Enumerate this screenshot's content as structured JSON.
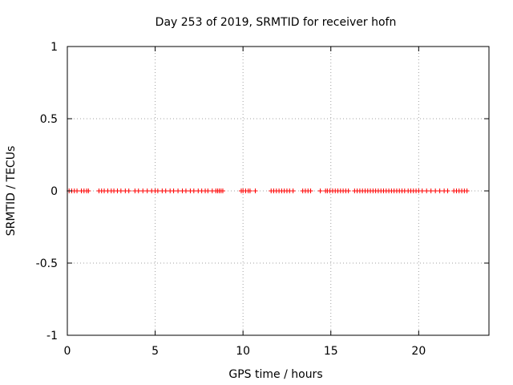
{
  "chart_data": {
    "type": "scatter",
    "title": "Day 253 of 2019, SRMTID for receiver hofn",
    "xlabel": "GPS time / hours",
    "ylabel": "SRMTID / TECUs",
    "xlim": [
      0,
      24
    ],
    "ylim": [
      -1,
      1
    ],
    "x_ticks": [
      0,
      5,
      10,
      15,
      20
    ],
    "x_tick_labels": [
      "0",
      "5",
      "10",
      "15",
      "20"
    ],
    "y_ticks": [
      -1,
      -0.5,
      0,
      0.5,
      1
    ],
    "y_tick_labels": [
      "-1",
      "-0.5",
      "0",
      "0.5",
      "1"
    ],
    "grid": true,
    "marker": "plus",
    "color": "#ff0000",
    "series": [
      {
        "name": "SRMTID",
        "points": [
          [
            0.1,
            0
          ],
          [
            0.25,
            0
          ],
          [
            0.4,
            0
          ],
          [
            0.55,
            0
          ],
          [
            0.8,
            0
          ],
          [
            0.95,
            0
          ],
          [
            1.1,
            0
          ],
          [
            1.2,
            0
          ],
          [
            1.8,
            0
          ],
          [
            1.95,
            0
          ],
          [
            2.1,
            0
          ],
          [
            2.3,
            0
          ],
          [
            2.5,
            0
          ],
          [
            2.65,
            0
          ],
          [
            2.85,
            0
          ],
          [
            3.05,
            0
          ],
          [
            3.3,
            0
          ],
          [
            3.5,
            0
          ],
          [
            3.85,
            0
          ],
          [
            4.05,
            0
          ],
          [
            4.3,
            0
          ],
          [
            4.55,
            0
          ],
          [
            4.8,
            0
          ],
          [
            5.0,
            0
          ],
          [
            5.15,
            0
          ],
          [
            5.4,
            0
          ],
          [
            5.6,
            0
          ],
          [
            5.85,
            0
          ],
          [
            6.05,
            0
          ],
          [
            6.3,
            0
          ],
          [
            6.55,
            0
          ],
          [
            6.75,
            0
          ],
          [
            7.0,
            0
          ],
          [
            7.2,
            0
          ],
          [
            7.45,
            0
          ],
          [
            7.65,
            0
          ],
          [
            7.85,
            0
          ],
          [
            8.0,
            0
          ],
          [
            8.25,
            0
          ],
          [
            8.45,
            0
          ],
          [
            8.55,
            0
          ],
          [
            8.65,
            0
          ],
          [
            8.75,
            0
          ],
          [
            8.85,
            0
          ],
          [
            9.9,
            0
          ],
          [
            10.0,
            0
          ],
          [
            10.15,
            0
          ],
          [
            10.3,
            0
          ],
          [
            10.4,
            0
          ],
          [
            10.7,
            0
          ],
          [
            11.6,
            0
          ],
          [
            11.75,
            0
          ],
          [
            11.9,
            0
          ],
          [
            12.05,
            0
          ],
          [
            12.2,
            0
          ],
          [
            12.35,
            0
          ],
          [
            12.5,
            0
          ],
          [
            12.65,
            0
          ],
          [
            12.85,
            0
          ],
          [
            13.4,
            0
          ],
          [
            13.55,
            0
          ],
          [
            13.7,
            0
          ],
          [
            13.85,
            0
          ],
          [
            14.4,
            0
          ],
          [
            14.7,
            0
          ],
          [
            14.8,
            0
          ],
          [
            14.95,
            0
          ],
          [
            15.1,
            0
          ],
          [
            15.25,
            0
          ],
          [
            15.4,
            0
          ],
          [
            15.55,
            0
          ],
          [
            15.7,
            0
          ],
          [
            15.85,
            0
          ],
          [
            16.0,
            0
          ],
          [
            16.35,
            0
          ],
          [
            16.5,
            0
          ],
          [
            16.65,
            0
          ],
          [
            16.8,
            0
          ],
          [
            16.95,
            0
          ],
          [
            17.1,
            0
          ],
          [
            17.25,
            0
          ],
          [
            17.4,
            0
          ],
          [
            17.55,
            0
          ],
          [
            17.7,
            0
          ],
          [
            17.85,
            0
          ],
          [
            18.0,
            0
          ],
          [
            18.15,
            0
          ],
          [
            18.3,
            0
          ],
          [
            18.45,
            0
          ],
          [
            18.6,
            0
          ],
          [
            18.75,
            0
          ],
          [
            18.9,
            0
          ],
          [
            19.05,
            0
          ],
          [
            19.2,
            0
          ],
          [
            19.4,
            0
          ],
          [
            19.55,
            0
          ],
          [
            19.7,
            0
          ],
          [
            19.85,
            0
          ],
          [
            20.0,
            0
          ],
          [
            20.2,
            0
          ],
          [
            20.45,
            0
          ],
          [
            20.7,
            0
          ],
          [
            20.95,
            0
          ],
          [
            21.2,
            0
          ],
          [
            21.45,
            0
          ],
          [
            21.65,
            0
          ],
          [
            22.0,
            0
          ],
          [
            22.15,
            0
          ],
          [
            22.3,
            0
          ],
          [
            22.45,
            0
          ],
          [
            22.6,
            0
          ],
          [
            22.75,
            0
          ]
        ]
      }
    ]
  }
}
